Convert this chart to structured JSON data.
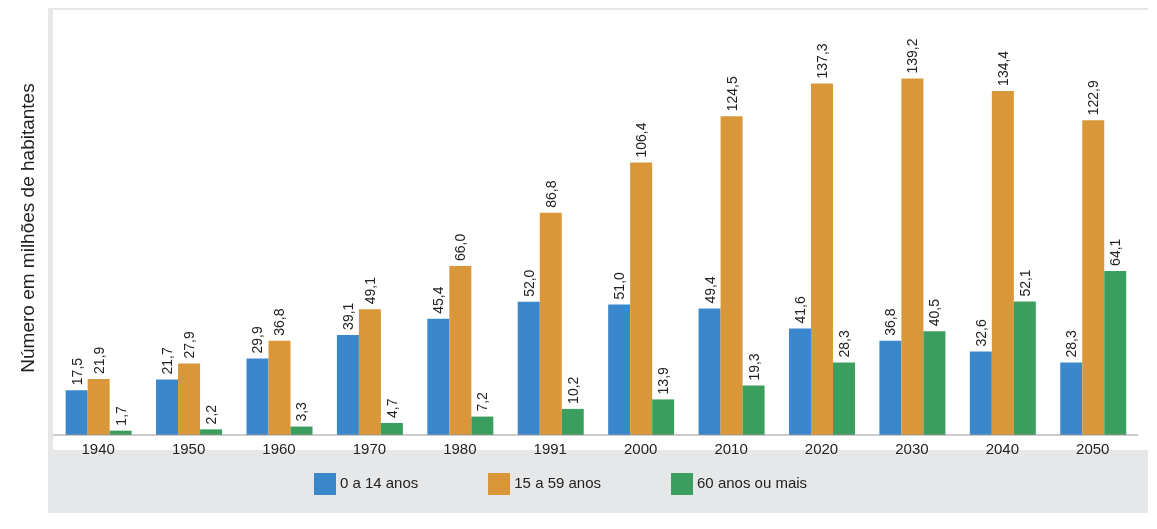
{
  "chart_data": {
    "type": "bar",
    "ylabel": "Número em milhões de habitantes",
    "categories": [
      "1940",
      "1950",
      "1960",
      "1970",
      "1980",
      "1991",
      "2000",
      "2010",
      "2020",
      "2030",
      "2040",
      "2050"
    ],
    "series": [
      {
        "name": "0 a 14 anos",
        "color": "#3a87cc",
        "values": [
          17.5,
          21.7,
          29.9,
          39.1,
          45.4,
          52.0,
          51.0,
          49.4,
          41.6,
          36.8,
          32.6,
          28.3
        ],
        "value_labels": [
          "17,5",
          "21,7",
          "29,9",
          "39,1",
          "45,4",
          "52,0",
          "51,0",
          "49,4",
          "41,6",
          "36,8",
          "32,6",
          "28,3"
        ]
      },
      {
        "name": "15 a 59 anos",
        "color": "#d9973a",
        "values": [
          21.9,
          27.9,
          36.8,
          49.1,
          66.0,
          86.8,
          106.4,
          124.5,
          137.3,
          139.2,
          134.4,
          122.9
        ],
        "value_labels": [
          "21,9",
          "27,9",
          "36,8",
          "49,1",
          "66,0",
          "86,8",
          "106,4",
          "124,5",
          "137,3",
          "139,2",
          "134,4",
          "122,9"
        ]
      },
      {
        "name": "60 anos ou mais",
        "color": "#3a9e5e",
        "values": [
          1.7,
          2.2,
          3.3,
          4.7,
          7.2,
          10.2,
          13.9,
          19.3,
          28.3,
          40.5,
          52.1,
          64.1
        ],
        "value_labels": [
          "1,7",
          "2,2",
          "3,3",
          "4,7",
          "7,2",
          "10,2",
          "13,9",
          "19,3",
          "28,3",
          "40,5",
          "52,1",
          "64,1"
        ]
      }
    ],
    "legend": "bottom",
    "grid": false
  }
}
